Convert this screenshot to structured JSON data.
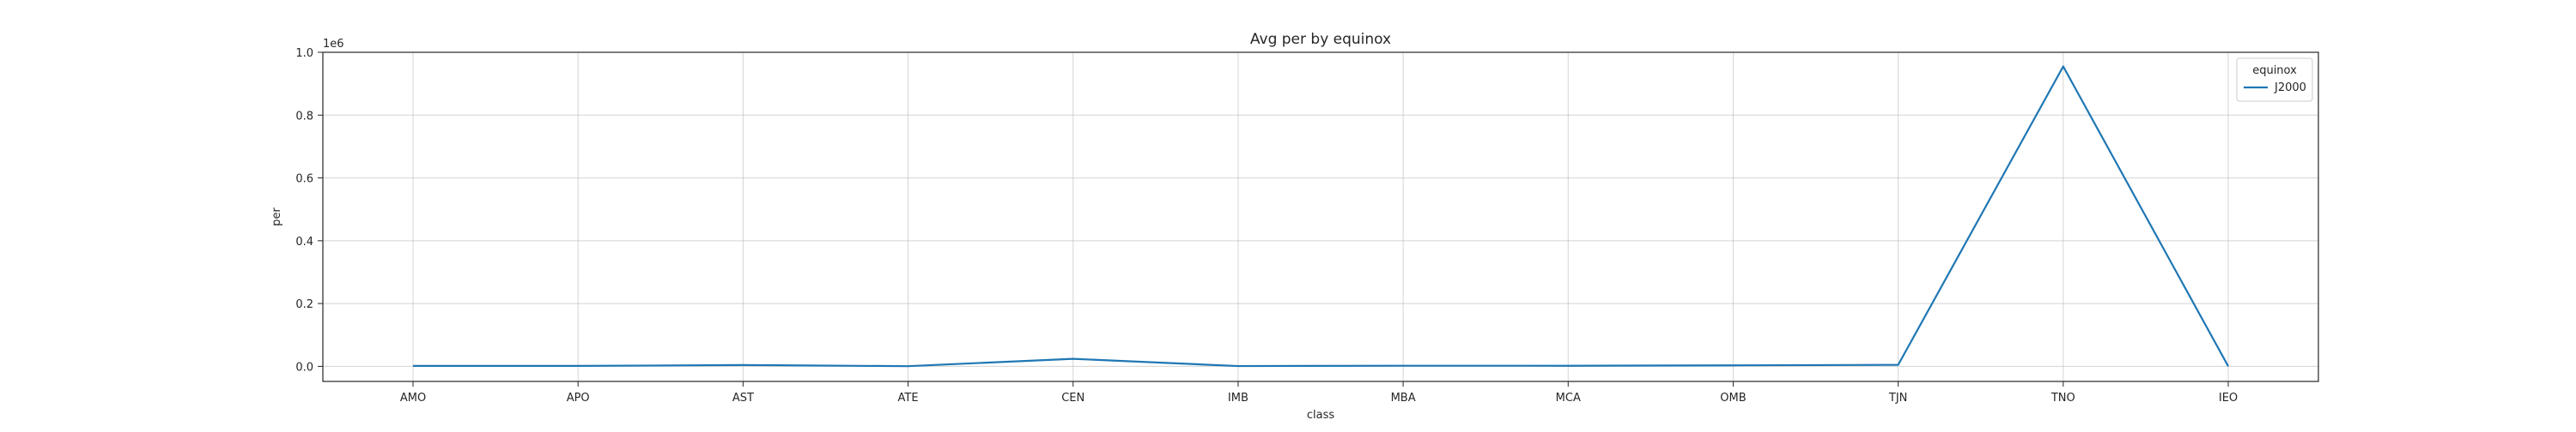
{
  "chart_data": {
    "type": "line",
    "title": "Avg per by equinox",
    "xlabel": "class",
    "ylabel": "per",
    "y_scale_label": "1e6",
    "categories": [
      "AMO",
      "APO",
      "AST",
      "ATE",
      "CEN",
      "IMB",
      "MBA",
      "MCA",
      "OMB",
      "TJN",
      "TNO",
      "IEO"
    ],
    "series": [
      {
        "name": "J2000",
        "color": "#1f77b4",
        "values": [
          1500,
          1400,
          4200,
          600,
          24000,
          900,
          2000,
          1900,
          3200,
          4800,
          955000,
          300
        ]
      }
    ],
    "ylim": [
      -48000,
      1000000
    ],
    "yticks": [
      0.0,
      0.2,
      0.4,
      0.6,
      0.8,
      1.0
    ],
    "ytick_labels": [
      "0.0",
      "0.2",
      "0.4",
      "0.6",
      "0.8",
      "1.0"
    ],
    "grid": true,
    "legend": {
      "title": "equinox",
      "placement": "top-right"
    }
  }
}
